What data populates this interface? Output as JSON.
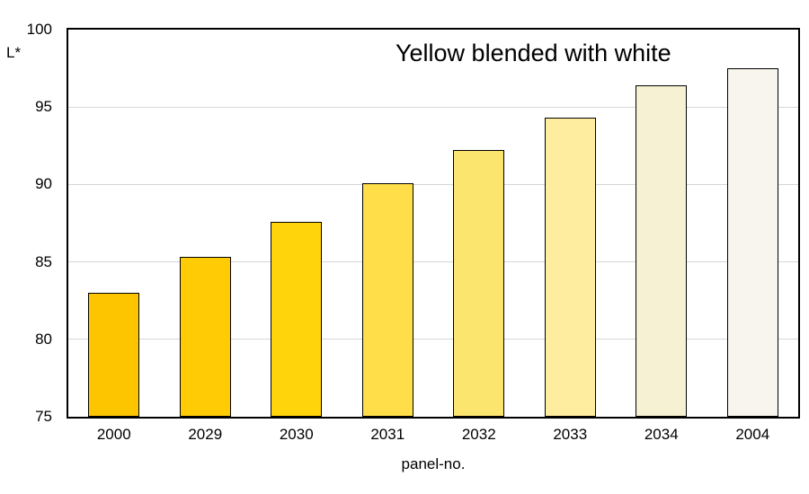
{
  "chart_data": {
    "type": "bar",
    "title": "Yellow blended with white",
    "xlabel": "panel-no.",
    "ylabel": "L*",
    "categories": [
      "2000",
      "2029",
      "2030",
      "2031",
      "2032",
      "2033",
      "2034",
      "2004"
    ],
    "values": [
      83.0,
      85.3,
      87.6,
      90.1,
      92.2,
      94.3,
      96.4,
      97.5
    ],
    "bar_colors": [
      "#FDC400",
      "#FECB05",
      "#FFD40A",
      "#FFDE49",
      "#FBE56E",
      "#FEEC9F",
      "#F6F1D2",
      "#F7F5ED"
    ],
    "ylim": [
      75,
      100
    ],
    "yticks": [
      75,
      80,
      85,
      90,
      95,
      100
    ],
    "grid": "horizontal",
    "legend": "none",
    "gridline_color": "#D6D6D6",
    "bar_border_color": "#000000",
    "axis_border_color": "#000000",
    "background_color": "#FFFFFF"
  }
}
